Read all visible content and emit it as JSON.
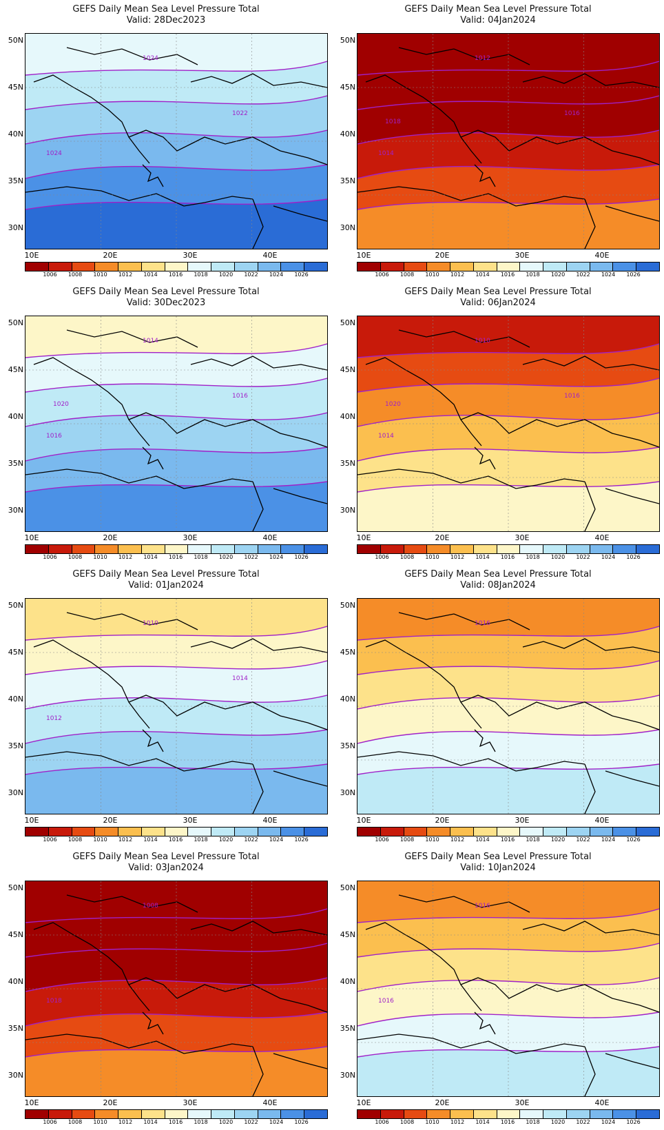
{
  "legend": {
    "labels": [
      "1006",
      "1008",
      "1010",
      "1012",
      "1014",
      "1016",
      "1018",
      "1020",
      "1022",
      "1024",
      "1026"
    ],
    "colors": [
      "#a00000",
      "#c81a0a",
      "#e64b12",
      "#f58c28",
      "#fbbf4f",
      "#fde28a",
      "#fdf6c8",
      "#e6f8fb",
      "#bfeaf6",
      "#9dd4f2",
      "#7ab9ee",
      "#4b91e6",
      "#2a6cd6"
    ]
  },
  "axes": {
    "lon_ticks": [
      "10E",
      "20E",
      "30E",
      "40E"
    ],
    "lat_ticks": [
      "50N",
      "45N",
      "40N",
      "35N",
      "30N"
    ]
  },
  "panels": [
    {
      "title": "GEFS Daily Mean Sea Level Pressure Total",
      "valid": "Valid: 28Dec2023",
      "base": 10,
      "labels": [
        "1024",
        "1024",
        "1022"
      ]
    },
    {
      "title": "GEFS Daily Mean Sea Level Pressure Total",
      "valid": "Valid: 04Jan2024",
      "base": 1,
      "labels": [
        "1012",
        "1014",
        "1016",
        "1018"
      ]
    },
    {
      "title": "GEFS Daily Mean Sea Level Pressure Total",
      "valid": "Valid: 30Dec2023",
      "base": 9,
      "labels": [
        "1014",
        "1016",
        "1016",
        "1020"
      ]
    },
    {
      "title": "GEFS Daily Mean Sea Level Pressure Total",
      "valid": "Valid: 06Jan2024",
      "base": 4,
      "labels": [
        "1010",
        "1014",
        "1016",
        "1020"
      ]
    },
    {
      "title": "GEFS Daily Mean Sea Level Pressure Total",
      "valid": "Valid: 01Jan2024",
      "base": 8,
      "labels": [
        "1010",
        "1012",
        "1014"
      ]
    },
    {
      "title": "GEFS Daily Mean Sea Level Pressure Total",
      "valid": "Valid: 08Jan2024",
      "base": 6,
      "labels": [
        "1016"
      ]
    },
    {
      "title": "GEFS Daily Mean Sea Level Pressure Total",
      "valid": "Valid: 03Jan2024",
      "base": 1,
      "labels": [
        "1008",
        "1018"
      ]
    },
    {
      "title": "GEFS Daily Mean Sea Level Pressure Total",
      "valid": "Valid: 10Jan2024",
      "base": 6,
      "labels": [
        "1016",
        "1016"
      ]
    }
  ]
}
